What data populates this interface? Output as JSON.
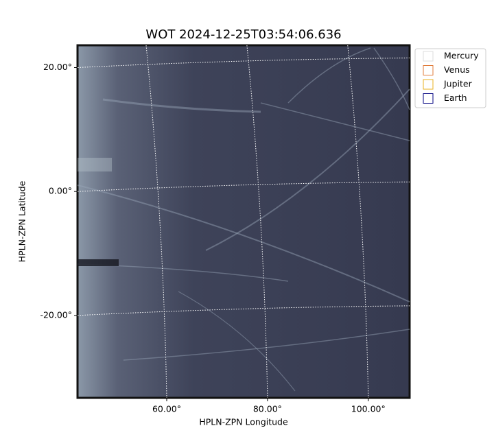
{
  "chart_data": {
    "type": "image",
    "title": "WOT 2024-12-25T03:54:06.636",
    "xlabel": "HPLN-ZPN Longitude",
    "ylabel": "HPLN-ZPN Latitude",
    "xlim": [
      42.3,
      108.2
    ],
    "ylim": [
      -33.3,
      23.6
    ],
    "xticks": [
      {
        "value": 60,
        "label": "60.00°"
      },
      {
        "value": 80,
        "label": "80.00°"
      },
      {
        "value": 100,
        "label": "100.00°"
      }
    ],
    "yticks": [
      {
        "value": 20,
        "label": "20.00°"
      },
      {
        "value": 0,
        "label": "0.00°"
      },
      {
        "value": -20,
        "label": "-20.00°"
      }
    ],
    "grid": true,
    "legend": {
      "position": "upper right",
      "entries": [
        {
          "name": "Mercury",
          "color": "#dddddd"
        },
        {
          "name": "Venus",
          "color": "#e07b39"
        },
        {
          "name": "Jupiter",
          "color": "#e8b020"
        },
        {
          "name": "Earth",
          "color": "#000080"
        }
      ]
    }
  }
}
